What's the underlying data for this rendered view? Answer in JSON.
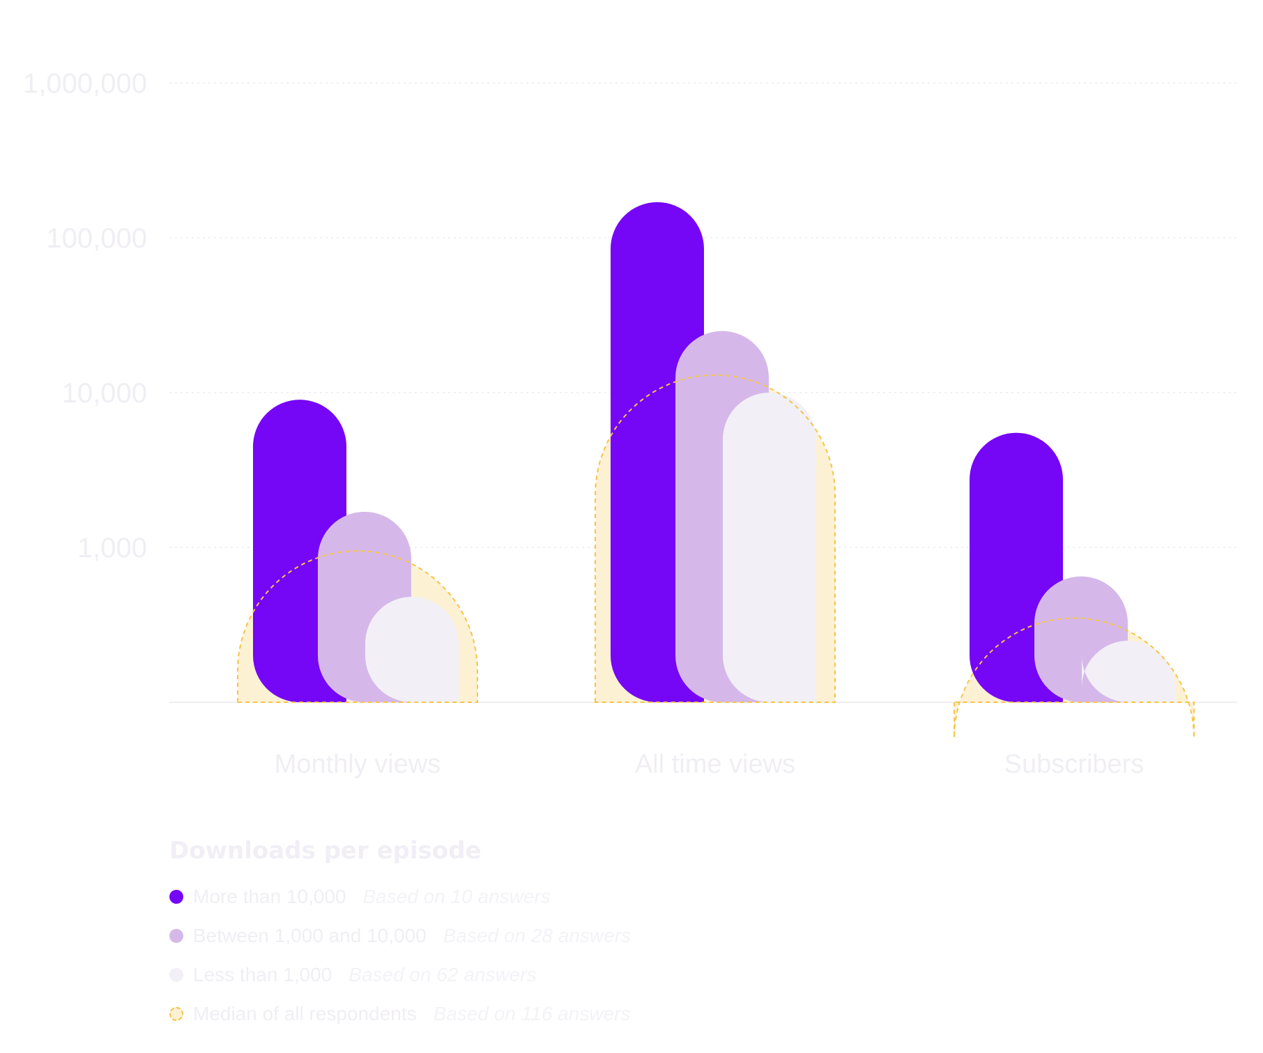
{
  "chart_data": {
    "type": "bar",
    "yscale": "log",
    "ylim": [
      100,
      1000000
    ],
    "yticks": [
      "1,000,000",
      "100,000",
      "10,000",
      "1,000"
    ],
    "categories": [
      "Monthly views",
      "All time views",
      "Subscribers"
    ],
    "series": [
      {
        "name": "More than 10,000",
        "values": [
          9000,
          170000,
          5500
        ],
        "color": "#7506f6"
      },
      {
        "name": "Between 1,000 and 10,000",
        "values": [
          1700,
          25000,
          650
        ],
        "color": "#d5b8e9"
      },
      {
        "name": "Less than 1,000",
        "values": [
          480,
          10000,
          250
        ],
        "color": "#f2f0f6"
      }
    ],
    "median": {
      "name": "Median of all respondents",
      "values": [
        950,
        13000,
        350
      ],
      "fill": "#fdf1d4",
      "stroke": "#f6c445"
    },
    "grid": true
  },
  "legend": {
    "title": "Downloads per episode",
    "items": [
      {
        "label": "More than 10,000",
        "note": "Based on 10 answers",
        "color": "#7506f6"
      },
      {
        "label": "Between 1,000 and 10,000",
        "note": "Based on 28 answers",
        "color": "#d5b8e9"
      },
      {
        "label": "Less than 1,000",
        "note": "Based on 62 answers",
        "color": "#f2f0f6"
      },
      {
        "label": "Median of all respondents",
        "note": "Based on 116 answers",
        "color": "#fdf1d4"
      }
    ]
  }
}
